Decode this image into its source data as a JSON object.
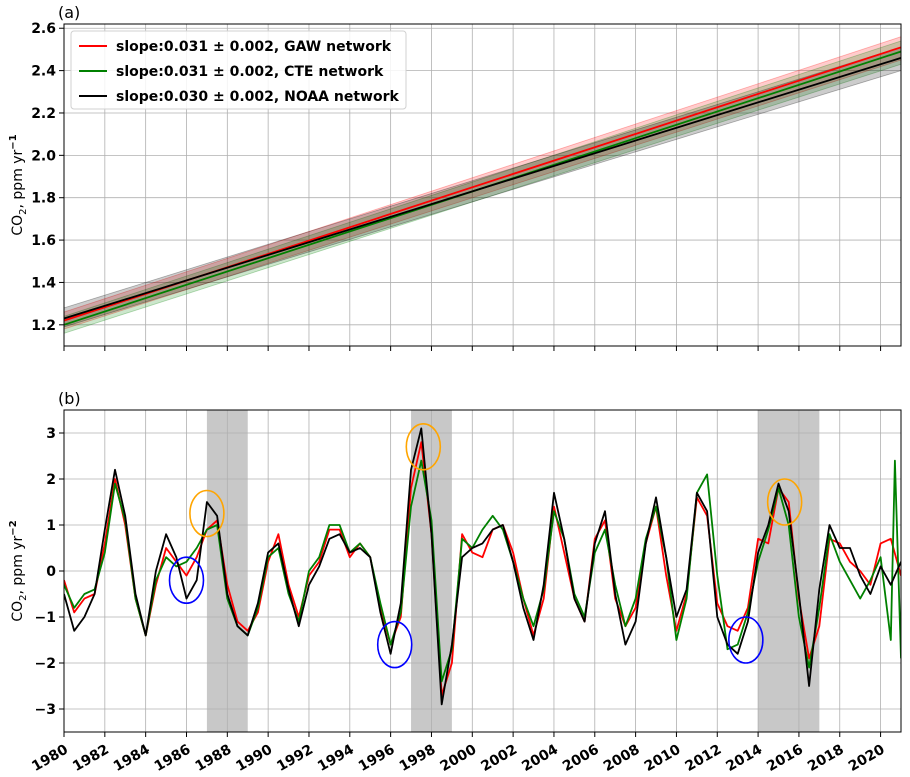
{
  "chart_data": [
    {
      "panel_label": "(a)",
      "type": "line",
      "ylabel": "CO2, ppm yr-1",
      "ylabel_parts": {
        "base": "CO",
        "sub": "2",
        "mid": ", ppm yr",
        "sup": "−1"
      },
      "xlim": [
        1980,
        2021
      ],
      "ylim": [
        1.1,
        2.62
      ],
      "yticks": [
        1.2,
        1.4,
        1.6,
        1.8,
        2.0,
        2.2,
        2.4,
        2.6
      ],
      "ytick_labels": [
        "1.2",
        "1.4",
        "1.6",
        "1.8",
        "2.0",
        "2.2",
        "2.4",
        "2.6"
      ],
      "grid": true,
      "legend_position": "top-left",
      "series": [
        {
          "name": "slope:0.031 ± 0.002, GAW network",
          "color": "#ff0000",
          "x": [
            1980,
            2021
          ],
          "y": [
            1.22,
            2.51
          ],
          "band_lo": [
            1.18,
            2.45
          ],
          "band_hi": [
            1.26,
            2.56
          ]
        },
        {
          "name": "slope:0.031 ± 0.002, CTE network",
          "color": "#008000",
          "x": [
            1980,
            2021
          ],
          "y": [
            1.2,
            2.49
          ],
          "band_lo": [
            1.16,
            2.43
          ],
          "band_hi": [
            1.24,
            2.54
          ]
        },
        {
          "name": "slope:0.030 ± 0.002, NOAA network",
          "color": "#000000",
          "x": [
            1980,
            2021
          ],
          "y": [
            1.23,
            2.46
          ],
          "band_lo": [
            1.19,
            2.4
          ],
          "band_hi": [
            1.28,
            2.51
          ]
        }
      ]
    },
    {
      "panel_label": "(b)",
      "type": "line",
      "ylabel": "CO2, ppm yr-2",
      "ylabel_parts": {
        "base": "CO",
        "sub": "2",
        "mid": ", ppm yr",
        "sup": "−2"
      },
      "xlim": [
        1980,
        2021
      ],
      "ylim": [
        -3.5,
        3.5
      ],
      "yticks": [
        -3,
        -2,
        -1,
        0,
        1,
        2,
        3
      ],
      "ytick_labels": [
        "−3",
        "−2",
        "−1",
        "0",
        "1",
        "2",
        "3"
      ],
      "xticks": [
        1980,
        1982,
        1984,
        1986,
        1988,
        1990,
        1992,
        1994,
        1996,
        1998,
        2000,
        2002,
        2004,
        2006,
        2008,
        2010,
        2012,
        2014,
        2016,
        2018,
        2020
      ],
      "xtick_labels": [
        "1980",
        "1982",
        "1984",
        "1986",
        "1988",
        "1990",
        "1992",
        "1994",
        "1996",
        "1998",
        "2000",
        "2002",
        "2004",
        "2006",
        "2008",
        "2010",
        "2012",
        "2014",
        "2016",
        "2018",
        "2020"
      ],
      "grid": true,
      "shaded_periods": [
        [
          1987,
          1989
        ],
        [
          1997,
          1999
        ],
        [
          2014,
          2017
        ]
      ],
      "circles": [
        {
          "x": 1987.0,
          "y": 1.25,
          "color": "#ffa500"
        },
        {
          "x": 1997.6,
          "y": 2.7,
          "color": "#ffa500"
        },
        {
          "x": 2015.3,
          "y": 1.5,
          "color": "#ffa500"
        },
        {
          "x": 1986.0,
          "y": -0.2,
          "color": "#0000ff"
        },
        {
          "x": 1996.2,
          "y": -1.6,
          "color": "#0000ff"
        },
        {
          "x": 2013.4,
          "y": -1.5,
          "color": "#0000ff"
        }
      ],
      "series": [
        {
          "name": "GAW",
          "color": "#ff0000",
          "x": [
            1980,
            1980.5,
            1981,
            1981.5,
            1982,
            1982.5,
            1983,
            1983.5,
            1984,
            1984.5,
            1985,
            1985.5,
            1986,
            1986.5,
            1987,
            1987.5,
            1988,
            1988.5,
            1989,
            1989.5,
            1990,
            1990.5,
            1991,
            1991.5,
            1992,
            1992.5,
            1993,
            1993.5,
            1994,
            1994.5,
            1995,
            1995.5,
            1996,
            1996.5,
            1997,
            1997.5,
            1998,
            1998.5,
            1999,
            1999.5,
            2000,
            2000.5,
            2001,
            2001.5,
            2002,
            2002.5,
            2003,
            2003.5,
            2004,
            2004.5,
            2005,
            2005.5,
            2006,
            2006.5,
            2007,
            2007.5,
            2008,
            2008.5,
            2009,
            2009.5,
            2010,
            2010.5,
            2011,
            2011.5,
            2012,
            2012.5,
            2013,
            2013.5,
            2014,
            2014.5,
            2015,
            2015.5,
            2016,
            2016.5,
            2017,
            2017.5,
            2018,
            2018.5,
            2019,
            2019.5,
            2020,
            2020.5,
            2021
          ],
          "y": [
            -0.2,
            -0.9,
            -0.6,
            -0.5,
            0.6,
            2.0,
            1.0,
            -0.6,
            -1.4,
            -0.3,
            0.5,
            0.2,
            -0.1,
            0.3,
            0.9,
            1.1,
            -0.3,
            -1.1,
            -1.3,
            -0.9,
            0.2,
            0.8,
            -0.3,
            -1.0,
            -0.1,
            0.2,
            0.9,
            0.9,
            0.3,
            0.6,
            0.3,
            -0.8,
            -1.6,
            -1.0,
            1.8,
            2.8,
            0.8,
            -2.7,
            -2.0,
            0.8,
            0.4,
            0.3,
            0.9,
            1.0,
            0.4,
            -0.6,
            -1.4,
            -0.6,
            1.4,
            0.4,
            -0.6,
            -1.1,
            0.7,
            1.1,
            -0.6,
            -1.2,
            -0.8,
            0.6,
            1.4,
            -0.1,
            -1.3,
            -0.5,
            1.6,
            1.2,
            -0.7,
            -1.2,
            -1.3,
            -0.8,
            0.7,
            0.6,
            1.8,
            1.5,
            -0.6,
            -1.9,
            -1.2,
            0.7,
            0.6,
            0.2,
            0.0,
            -0.3,
            0.6,
            0.7,
            -0.1
          ]
        },
        {
          "name": "CTE",
          "color": "#008000",
          "x": [
            1980,
            1980.5,
            1981,
            1981.5,
            1982,
            1982.5,
            1983,
            1983.5,
            1984,
            1984.5,
            1985,
            1985.5,
            1986,
            1986.5,
            1987,
            1987.5,
            1988,
            1988.5,
            1989,
            1989.5,
            1990,
            1990.5,
            1991,
            1991.5,
            1992,
            1992.5,
            1993,
            1993.5,
            1994,
            1994.5,
            1995,
            1995.5,
            1996,
            1996.5,
            1997,
            1997.5,
            1998,
            1998.5,
            1999,
            1999.5,
            2000,
            2000.5,
            2001,
            2001.5,
            2002,
            2002.5,
            2003,
            2003.5,
            2004,
            2004.5,
            2005,
            2005.5,
            2006,
            2006.5,
            2007,
            2007.5,
            2008,
            2008.5,
            2009,
            2009.5,
            2010,
            2010.5,
            2011,
            2011.5,
            2012,
            2012.5,
            2013,
            2013.5,
            2014,
            2014.5,
            2015,
            2015.5,
            2016,
            2016.5,
            2017,
            2017.5,
            2018,
            2018.5,
            2019,
            2019.5,
            2020,
            2020.5,
            2020.7,
            2021
          ],
          "y": [
            -0.3,
            -0.8,
            -0.5,
            -0.4,
            0.4,
            1.9,
            1.1,
            -0.6,
            -1.4,
            -0.2,
            0.3,
            0.1,
            0.2,
            0.5,
            0.9,
            1.0,
            -0.6,
            -1.2,
            -1.4,
            -0.8,
            0.3,
            0.5,
            -0.5,
            -1.1,
            0.0,
            0.3,
            1.0,
            1.0,
            0.4,
            0.6,
            0.3,
            -0.7,
            -1.6,
            -0.9,
            1.4,
            2.4,
            1.1,
            -2.4,
            -1.7,
            0.7,
            0.5,
            0.9,
            1.2,
            0.9,
            0.2,
            -0.6,
            -1.2,
            -0.4,
            1.3,
            0.7,
            -0.5,
            -1.0,
            0.4,
            0.9,
            -0.3,
            -1.2,
            -0.6,
            0.7,
            1.4,
            0.3,
            -1.5,
            -0.6,
            1.7,
            2.1,
            -0.1,
            -1.7,
            -1.6,
            -0.9,
            0.2,
            0.9,
            1.8,
            1.0,
            -1.0,
            -2.1,
            -0.8,
            0.8,
            0.2,
            -0.2,
            -0.6,
            -0.2,
            0.3,
            -1.5,
            2.4,
            -1.9
          ]
        },
        {
          "name": "NOAA",
          "color": "#000000",
          "x": [
            1980,
            1980.5,
            1981,
            1981.5,
            1982,
            1982.5,
            1983,
            1983.5,
            1984,
            1984.5,
            1985,
            1985.5,
            1986,
            1986.5,
            1987,
            1987.5,
            1988,
            1988.5,
            1989,
            1989.5,
            1990,
            1990.5,
            1991,
            1991.5,
            1992,
            1992.5,
            1993,
            1993.5,
            1994,
            1994.5,
            1995,
            1995.5,
            1996,
            1996.5,
            1997,
            1997.5,
            1998,
            1998.5,
            1999,
            1999.5,
            2000,
            2000.5,
            2001,
            2001.5,
            2002,
            2002.5,
            2003,
            2003.5,
            2004,
            2004.5,
            2005,
            2005.5,
            2006,
            2006.5,
            2007,
            2007.5,
            2008,
            2008.5,
            2009,
            2009.5,
            2010,
            2010.5,
            2011,
            2011.5,
            2012,
            2012.5,
            2013,
            2013.5,
            2014,
            2014.5,
            2015,
            2015.5,
            2016,
            2016.5,
            2017,
            2017.5,
            2018,
            2018.5,
            2019,
            2019.5,
            2020,
            2020.5,
            2021
          ],
          "y": [
            -0.5,
            -1.3,
            -1.0,
            -0.5,
            0.9,
            2.2,
            1.2,
            -0.5,
            -1.4,
            0.0,
            0.8,
            0.3,
            -0.6,
            -0.2,
            1.5,
            1.2,
            -0.5,
            -1.2,
            -1.4,
            -0.7,
            0.4,
            0.6,
            -0.4,
            -1.2,
            -0.3,
            0.1,
            0.7,
            0.8,
            0.4,
            0.5,
            0.3,
            -0.9,
            -1.8,
            -0.7,
            2.2,
            3.1,
            0.8,
            -2.9,
            -1.6,
            0.3,
            0.5,
            0.6,
            0.9,
            1.0,
            0.2,
            -0.8,
            -1.5,
            -0.3,
            1.7,
            0.7,
            -0.6,
            -1.1,
            0.6,
            1.3,
            -0.5,
            -1.6,
            -1.1,
            0.6,
            1.6,
            0.3,
            -1.0,
            -0.4,
            1.7,
            1.3,
            -1.0,
            -1.6,
            -1.8,
            -1.1,
            0.4,
            1.0,
            1.9,
            1.3,
            -0.5,
            -2.5,
            -0.4,
            1.0,
            0.5,
            0.5,
            -0.1,
            -0.5,
            0.1,
            -0.3,
            0.2
          ]
        }
      ]
    }
  ]
}
